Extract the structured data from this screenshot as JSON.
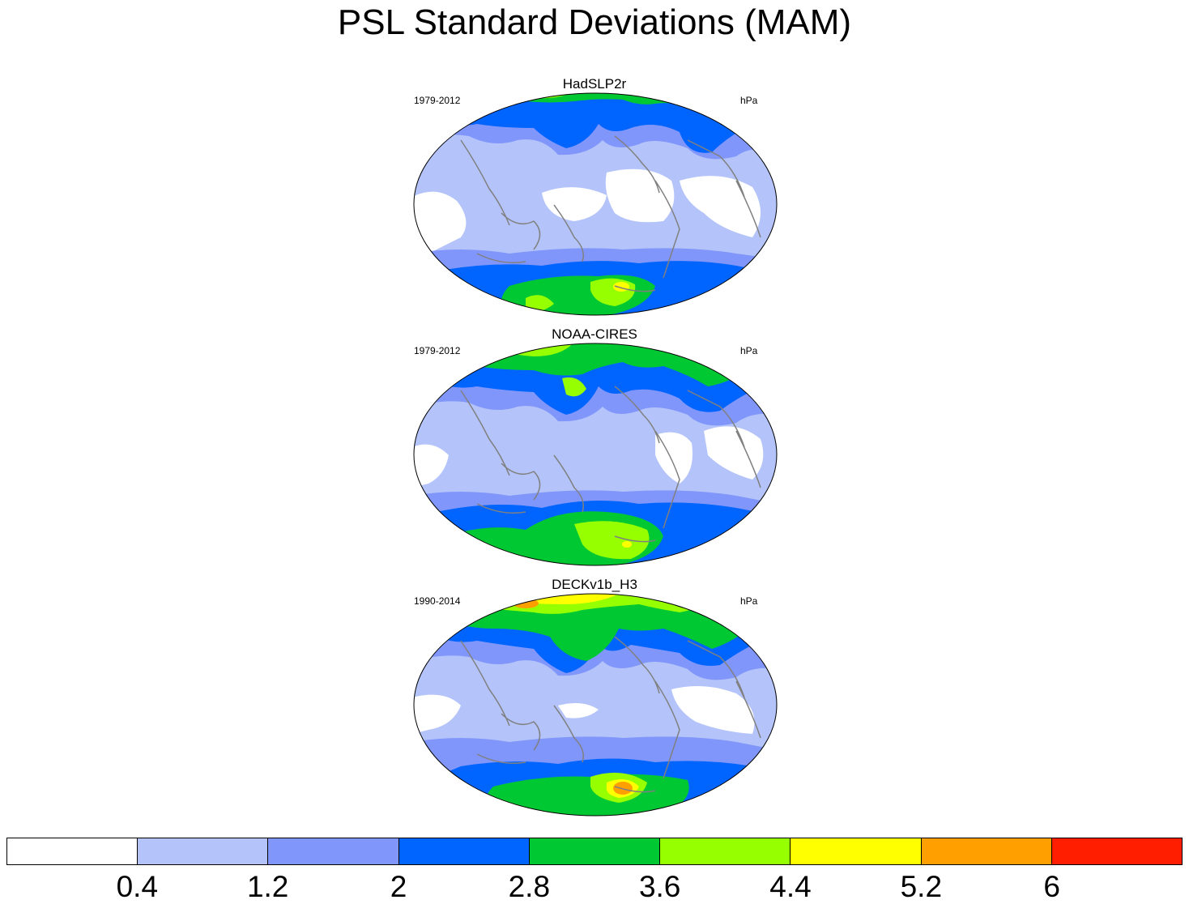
{
  "title": "PSL Standard Deviations (MAM)",
  "panels": [
    {
      "name": "HadSLP2r",
      "period": "1979-2012",
      "units": "hPa"
    },
    {
      "name": "NOAA-CIRES",
      "period": "1979-2012",
      "units": "hPa"
    },
    {
      "name": "DECKv1b_H3",
      "period": "1990-2014",
      "units": "hPa"
    }
  ],
  "colorbar": {
    "colors": [
      "#ffffff",
      "#b4c4fa",
      "#8096fa",
      "#0064ff",
      "#00c832",
      "#96ff00",
      "#ffff00",
      "#ffa000",
      "#ff1e00"
    ],
    "labels": [
      "0.4",
      "1.2",
      "2",
      "2.8",
      "3.6",
      "4.4",
      "5.2",
      "6"
    ]
  },
  "chart_data": {
    "type": "heatmap",
    "projection": "Mollweide-like global map, Pacific-centered",
    "variable": "PSL standard deviation",
    "season": "MAM",
    "units": "hPa",
    "contour_levels": [
      0.4,
      1.2,
      2,
      2.8,
      3.6,
      4.4,
      5.2,
      6
    ],
    "panels": [
      "HadSLP2r",
      "NOAA-CIRES",
      "DECKv1b_H3"
    ]
  }
}
